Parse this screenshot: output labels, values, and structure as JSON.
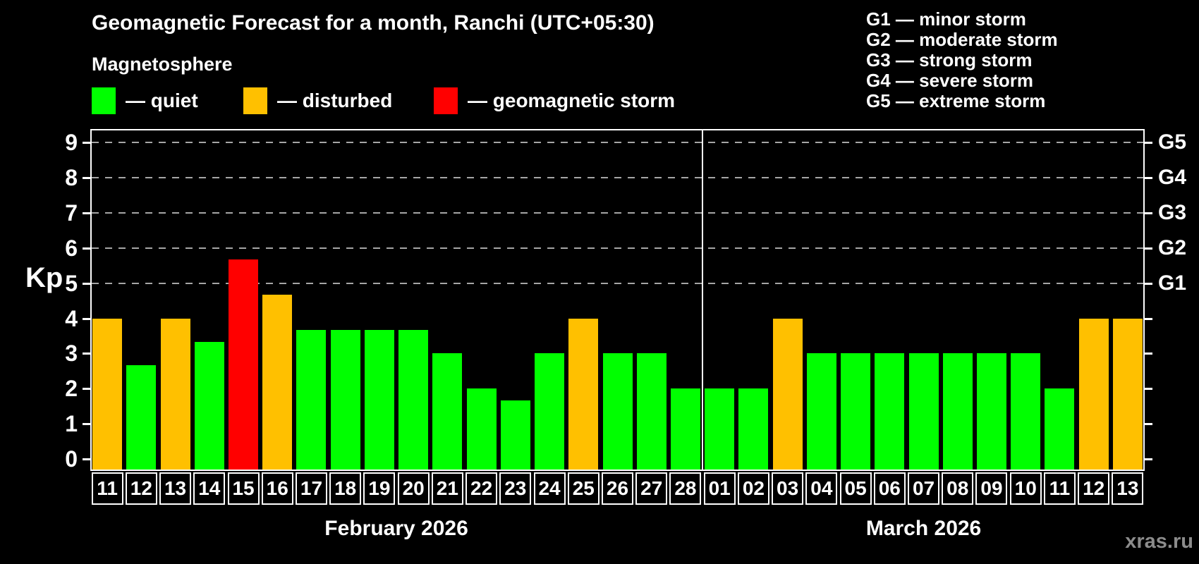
{
  "title": "Geomagnetic Forecast for a month, Ranchi (UTC+05:30)",
  "legend": {
    "title": "Magnetosphere",
    "items": [
      {
        "name": "quiet",
        "label": "— quiet",
        "color": "#00FF00"
      },
      {
        "name": "disturbed",
        "label": "— disturbed",
        "color": "#FFC000"
      },
      {
        "name": "storm",
        "label": "— geomagnetic storm",
        "color": "#FF0000"
      }
    ]
  },
  "g_legend": {
    "lines": [
      "G1 — minor storm",
      "G2 — moderate storm",
      "G3 — strong storm",
      "G4 — severe storm",
      "G5 — extreme storm"
    ]
  },
  "watermark": "xras.ru",
  "chart_data": {
    "type": "bar",
    "title": "Geomagnetic Forecast for a month, Ranchi (UTC+05:30)",
    "ylabel": "Kp",
    "ylim": [
      0,
      9.4
    ],
    "y_ticks": [
      0,
      1,
      2,
      3,
      4,
      5,
      6,
      7,
      8,
      9
    ],
    "gridlines_kp": [
      5,
      6,
      7,
      8,
      9
    ],
    "grid": "dashed horizontal lines only at G1–G5 levels (Kp 5–9)",
    "legend_position": "top-left",
    "right_axis_labels": [
      {
        "label": "G1",
        "kp": 5
      },
      {
        "label": "G2",
        "kp": 6
      },
      {
        "label": "G3",
        "kp": 7
      },
      {
        "label": "G4",
        "kp": 8
      },
      {
        "label": "G5",
        "kp": 9
      }
    ],
    "colors": {
      "quiet": "#00FF00",
      "disturbed": "#FFC000",
      "storm": "#FF0000"
    },
    "months": [
      {
        "label": "February 2026",
        "days": [
          {
            "day": "11",
            "kp": 4.0,
            "status": "disturbed"
          },
          {
            "day": "12",
            "kp": 2.67,
            "status": "quiet"
          },
          {
            "day": "13",
            "kp": 4.0,
            "status": "disturbed"
          },
          {
            "day": "14",
            "kp": 3.33,
            "status": "quiet"
          },
          {
            "day": "15",
            "kp": 5.67,
            "status": "storm"
          },
          {
            "day": "16",
            "kp": 4.67,
            "status": "disturbed"
          },
          {
            "day": "17",
            "kp": 3.67,
            "status": "quiet"
          },
          {
            "day": "18",
            "kp": 3.67,
            "status": "quiet"
          },
          {
            "day": "19",
            "kp": 3.67,
            "status": "quiet"
          },
          {
            "day": "20",
            "kp": 3.67,
            "status": "quiet"
          },
          {
            "day": "21",
            "kp": 3.0,
            "status": "quiet"
          },
          {
            "day": "22",
            "kp": 2.0,
            "status": "quiet"
          },
          {
            "day": "23",
            "kp": 1.67,
            "status": "quiet"
          },
          {
            "day": "24",
            "kp": 3.0,
            "status": "quiet"
          },
          {
            "day": "25",
            "kp": 4.0,
            "status": "disturbed"
          },
          {
            "day": "26",
            "kp": 3.0,
            "status": "quiet"
          },
          {
            "day": "27",
            "kp": 3.0,
            "status": "quiet"
          },
          {
            "day": "28",
            "kp": 2.0,
            "status": "quiet"
          }
        ]
      },
      {
        "label": "March 2026",
        "days": [
          {
            "day": "01",
            "kp": 2.0,
            "status": "quiet"
          },
          {
            "day": "02",
            "kp": 2.0,
            "status": "quiet"
          },
          {
            "day": "03",
            "kp": 4.0,
            "status": "disturbed"
          },
          {
            "day": "04",
            "kp": 3.0,
            "status": "quiet"
          },
          {
            "day": "05",
            "kp": 3.0,
            "status": "quiet"
          },
          {
            "day": "06",
            "kp": 3.0,
            "status": "quiet"
          },
          {
            "day": "07",
            "kp": 3.0,
            "status": "quiet"
          },
          {
            "day": "08",
            "kp": 3.0,
            "status": "quiet"
          },
          {
            "day": "09",
            "kp": 3.0,
            "status": "quiet"
          },
          {
            "day": "10",
            "kp": 3.0,
            "status": "quiet"
          },
          {
            "day": "11",
            "kp": 2.0,
            "status": "quiet"
          },
          {
            "day": "12",
            "kp": 4.0,
            "status": "disturbed"
          },
          {
            "day": "13",
            "kp": 4.0,
            "status": "disturbed"
          }
        ]
      }
    ]
  }
}
